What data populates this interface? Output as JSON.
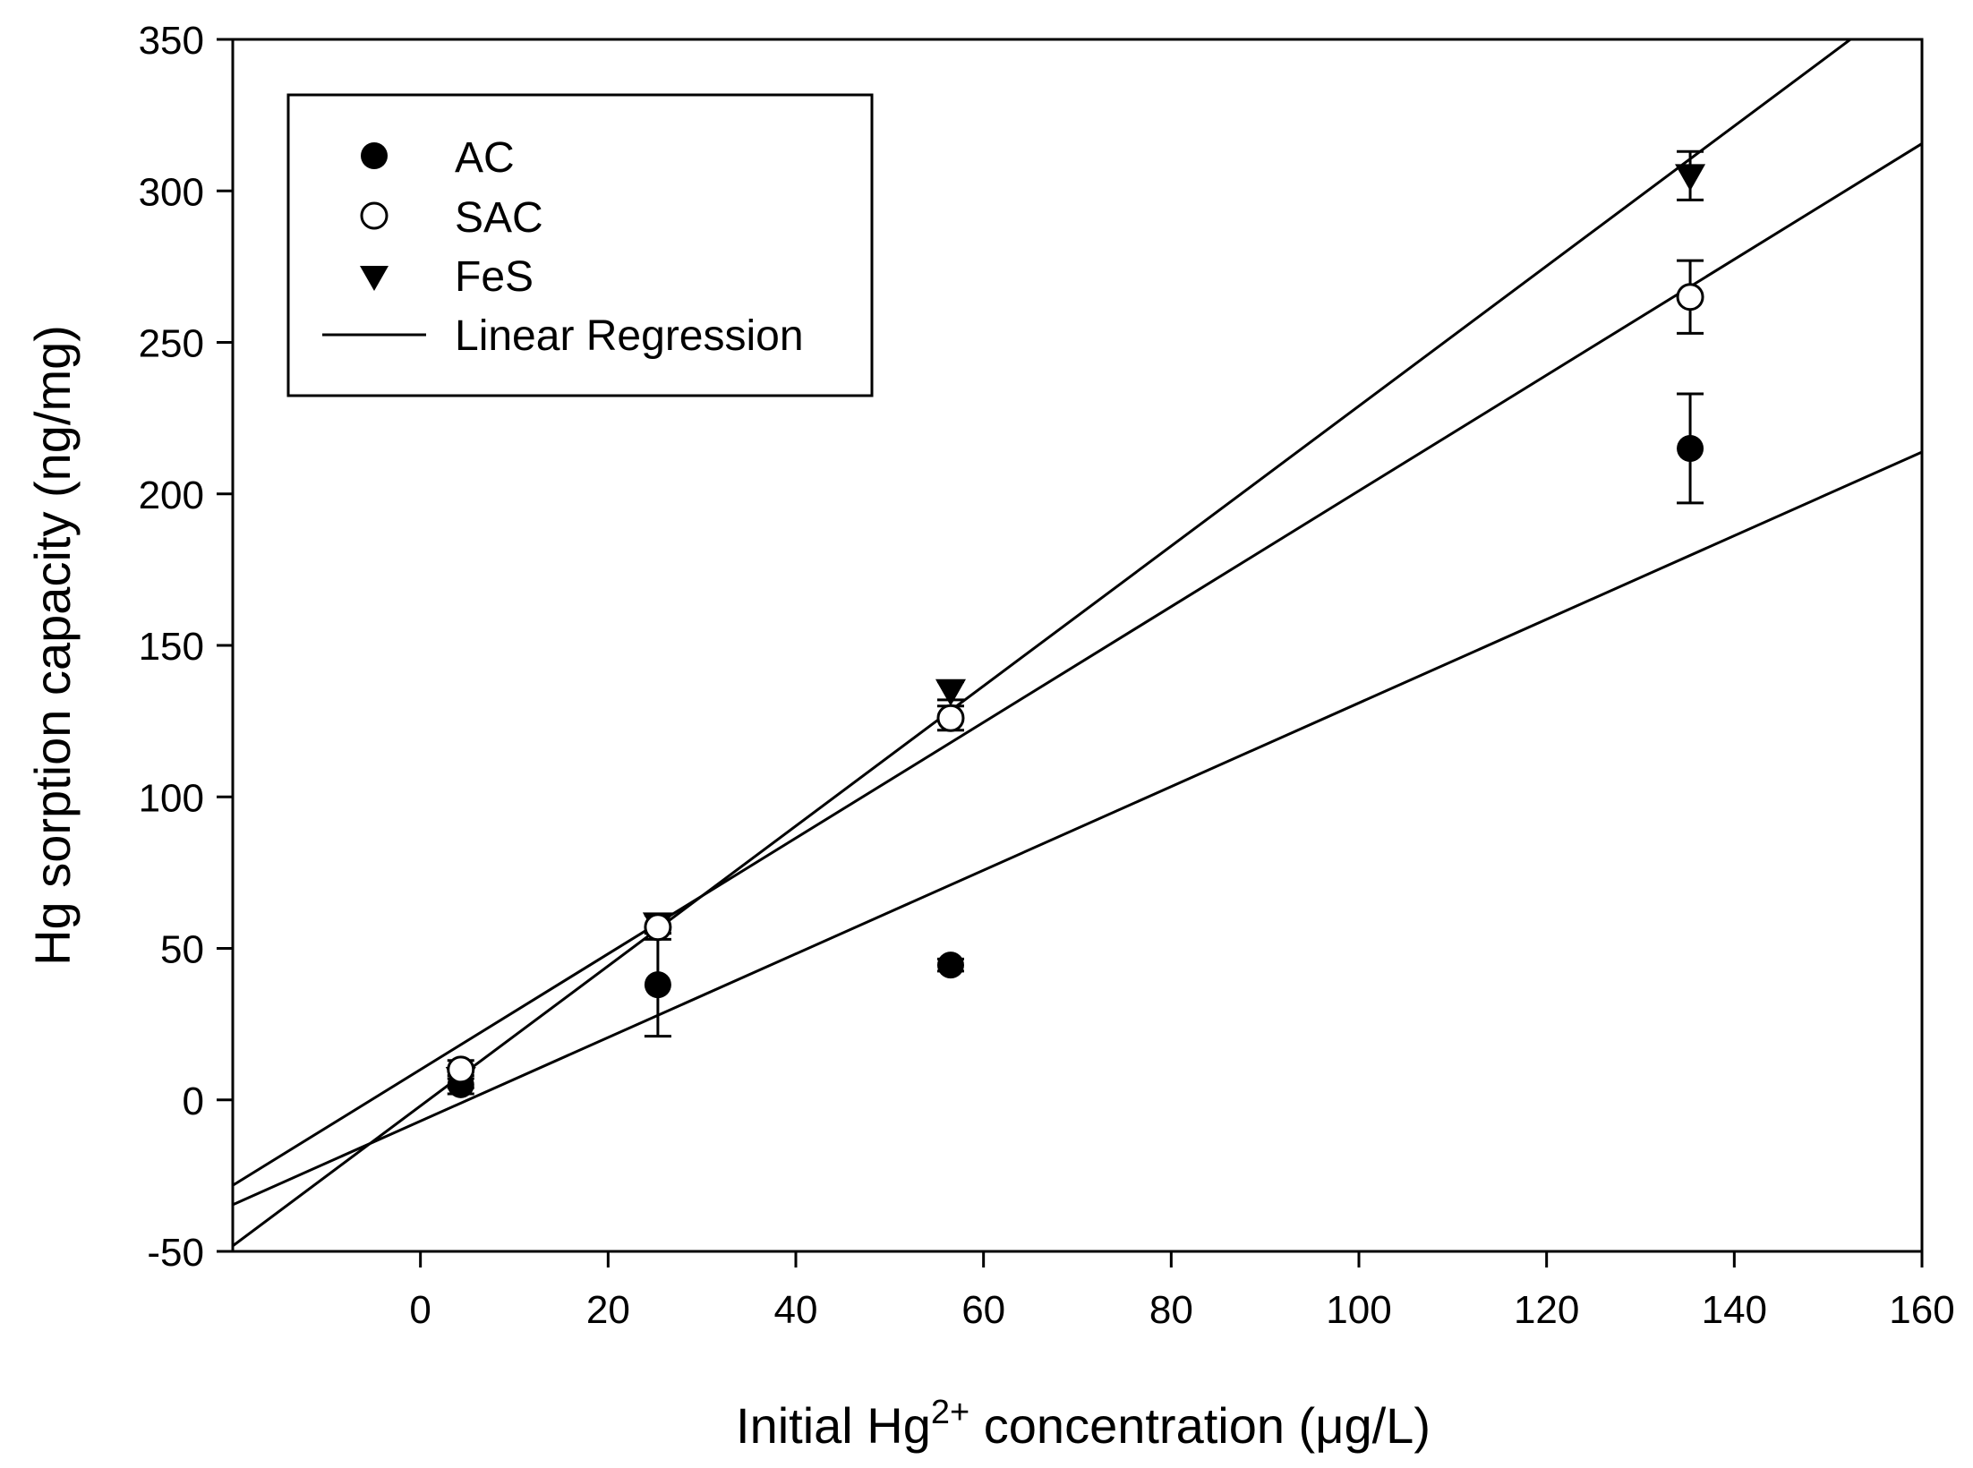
{
  "chart_data": {
    "type": "scatter",
    "title": "",
    "xlabel": "Initial Hg",
    "xlabel_superscript": "2+",
    "xlabel_suffix": " concentration (μg/L)",
    "ylabel": "Hg sorption capacity (ng/mg)",
    "xlim": [
      -20,
      160
    ],
    "ylim": [
      -50,
      350
    ],
    "xticks": [
      0,
      20,
      40,
      60,
      80,
      100,
      120,
      140,
      160
    ],
    "yticks": [
      -50,
      0,
      50,
      100,
      150,
      200,
      250,
      300,
      350
    ],
    "grid": false,
    "legend_position": "top-left",
    "series": [
      {
        "name": "AC",
        "marker": "filled-circle",
        "points": [
          {
            "x": 4.3,
            "y": 5,
            "err": 3
          },
          {
            "x": 25.3,
            "y": 38,
            "err": 17
          },
          {
            "x": 56.5,
            "y": 44.5,
            "err": 2
          },
          {
            "x": 135.3,
            "y": 215,
            "err": 18
          }
        ],
        "regression": {
          "slope": 1.38,
          "intercept": -7
        }
      },
      {
        "name": "SAC",
        "marker": "open-circle",
        "points": [
          {
            "x": 4.3,
            "y": 10,
            "err": 3
          },
          {
            "x": 25.3,
            "y": 57,
            "err": 4
          },
          {
            "x": 56.5,
            "y": 126,
            "err": 4
          },
          {
            "x": 135.3,
            "y": 265,
            "err": 12
          }
        ],
        "regression": {
          "slope": 1.91,
          "intercept": 10
        }
      },
      {
        "name": "FeS",
        "marker": "filled-triangle-down",
        "points": [
          {
            "x": 4.3,
            "y": 7,
            "err": 3
          },
          {
            "x": 25.3,
            "y": 58,
            "err": 3
          },
          {
            "x": 56.5,
            "y": 135,
            "err": 3
          },
          {
            "x": 135.3,
            "y": 305,
            "err": 8
          }
        ],
        "regression": {
          "slope": 2.31,
          "intercept": -2
        }
      }
    ],
    "legend": {
      "entries": [
        "AC",
        "SAC",
        "FeS",
        "Linear Regression"
      ]
    }
  }
}
